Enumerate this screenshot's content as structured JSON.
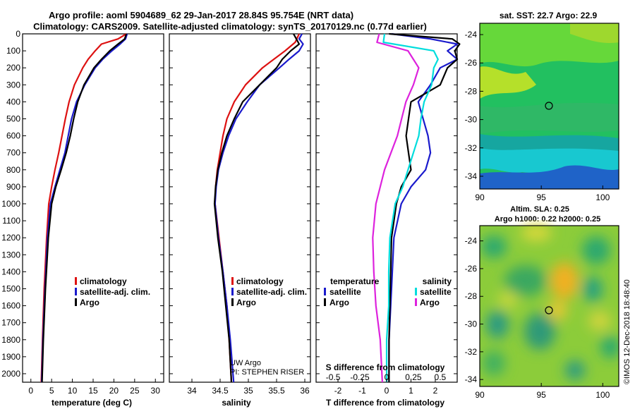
{
  "title_line1": "Argo profile: aoml 5904689_62 29-Jan-2017 28.84S 95.754E (NRT data)",
  "title_line2": "Climatology: CARS2009. Satellite-adjusted climatology: synTS_20170129.nc (0.77d earlier)",
  "colors": {
    "climatology": "#dd1111",
    "satellite": "#1a1acc",
    "argo": "#000000",
    "salinity_clim": "#dd22dd",
    "salinity_sat": "#00dddd"
  },
  "chart_data": [
    {
      "type": "line",
      "id": "temperature",
      "xlabel": "temperature (deg C)",
      "xlim": [
        -2,
        32
      ],
      "ylim": [
        0,
        2050
      ],
      "xticks": [
        "0",
        "5",
        "10",
        "15",
        "20",
        "25",
        "30"
      ],
      "yticks": [
        "0",
        "100",
        "200",
        "300",
        "400",
        "500",
        "600",
        "700",
        "800",
        "900",
        "1000",
        "1100",
        "1200",
        "1300",
        "1400",
        "1500",
        "1600",
        "1700",
        "1800",
        "1900",
        "2000"
      ],
      "legend": [
        "climatology",
        "satellite-adj. clim.",
        "Argo"
      ],
      "series": [
        {
          "name": "climatology",
          "depth": [
            0,
            30,
            60,
            100,
            150,
            200,
            300,
            400,
            500,
            600,
            700,
            800,
            900,
            1000,
            1200,
            1500,
            1800,
            2050
          ],
          "values": [
            23,
            21,
            17,
            15.5,
            13.8,
            12.5,
            10.5,
            9.2,
            8.3,
            7.5,
            6.7,
            5.8,
            5,
            4.3,
            3.8,
            3.2,
            2.8,
            2.5
          ]
        },
        {
          "name": "satellite-adj. clim.",
          "depth": [
            0,
            30,
            60,
            100,
            150,
            200,
            300,
            400,
            500,
            600,
            700,
            800,
            900,
            1000,
            1200,
            1500,
            1800,
            2050
          ],
          "values": [
            23.2,
            22.8,
            21.5,
            19.5,
            17.3,
            15.5,
            13,
            11,
            9.8,
            9,
            8.2,
            7,
            5.8,
            4.7,
            4,
            3.4,
            2.9,
            2.6
          ]
        },
        {
          "name": "Argo",
          "depth": [
            0,
            30,
            60,
            100,
            150,
            200,
            300,
            400,
            500,
            600,
            700,
            800,
            900,
            1000,
            1200,
            1500,
            1800,
            2050
          ],
          "values": [
            23,
            22.6,
            21,
            19,
            17,
            15.2,
            12.8,
            11.3,
            10.3,
            9.5,
            8.5,
            7.3,
            6,
            5,
            4.2,
            3.5,
            3,
            2.7
          ]
        }
      ]
    },
    {
      "type": "line",
      "id": "salinity",
      "xlabel": "salinity",
      "xlim": [
        33.6,
        36.1
      ],
      "ylim": [
        0,
        2050
      ],
      "xticks": [
        "34",
        "34.5",
        "35",
        "35.5",
        "36"
      ],
      "legend": [
        "climatology",
        "satellite-adj. clim.",
        "Argo"
      ],
      "credits": [
        "UW Argo",
        "PI: STEPHEN RISER"
      ],
      "series": [
        {
          "name": "climatology",
          "depth": [
            0,
            50,
            100,
            150,
            200,
            300,
            400,
            500,
            600,
            700,
            800,
            900,
            1000,
            1200,
            1400,
            1600,
            1800,
            2050
          ],
          "values": [
            35.9,
            35.83,
            35.65,
            35.45,
            35.25,
            34.95,
            34.75,
            34.62,
            34.55,
            34.5,
            34.45,
            34.42,
            34.41,
            34.48,
            34.55,
            34.62,
            34.66,
            34.7
          ]
        },
        {
          "name": "satellite-adj. clim.",
          "depth": [
            0,
            30,
            60,
            100,
            150,
            200,
            300,
            400,
            500,
            600,
            700,
            800,
            900,
            1000,
            1200,
            1400,
            1600,
            1800,
            2050
          ],
          "values": [
            35.95,
            35.9,
            35.97,
            35.9,
            35.72,
            35.55,
            35.2,
            34.98,
            34.78,
            34.65,
            34.55,
            34.47,
            34.43,
            34.41,
            34.47,
            34.55,
            34.62,
            34.68,
            34.74
          ]
        },
        {
          "name": "Argo",
          "depth": [
            0,
            30,
            60,
            100,
            150,
            200,
            300,
            400,
            500,
            600,
            700,
            800,
            900,
            1000,
            1200,
            1400,
            1600,
            1800,
            2050
          ],
          "values": [
            35.8,
            35.85,
            35.9,
            35.75,
            35.6,
            35.5,
            35.2,
            34.9,
            34.75,
            34.62,
            34.53,
            34.46,
            34.42,
            34.4,
            34.46,
            34.54,
            34.6,
            34.66,
            34.7
          ]
        }
      ]
    },
    {
      "type": "line",
      "id": "difference",
      "xlabel": "T difference from climatology",
      "xlabel_top": "S difference from climatology",
      "xlim": [
        -2.9,
        2.9
      ],
      "ylim": [
        0,
        2050
      ],
      "xticks": [
        "-2",
        "-1",
        "0",
        "1",
        "2"
      ],
      "xticks_s": [
        "-0.5",
        "-0.25",
        "0",
        "0.25",
        "0.5"
      ],
      "legend_titles": [
        "temperature",
        "salinity"
      ],
      "legend": [
        "satellite",
        "Argo",
        "satellite",
        "Argo"
      ],
      "series": [
        {
          "name": "temperature satellite",
          "depth": [
            0,
            30,
            60,
            100,
            150,
            200,
            300,
            400,
            500,
            600,
            700,
            800,
            900,
            1000,
            1200,
            1500,
            1800,
            2050
          ],
          "values": [
            0.2,
            1.8,
            2.9,
            2.5,
            2.9,
            2.2,
            1.8,
            1.3,
            1.5,
            1.7,
            1.8,
            1.6,
            1,
            0.6,
            0.3,
            0.2,
            0.1,
            0.1
          ]
        },
        {
          "name": "temperature Argo",
          "depth": [
            0,
            30,
            60,
            100,
            150,
            200,
            300,
            400,
            500,
            600,
            700,
            800,
            900,
            1000,
            1200,
            1500,
            1800,
            2050
          ],
          "values": [
            0.1,
            2.7,
            3,
            2.8,
            2.9,
            2.5,
            2.2,
            1,
            0.9,
            0.8,
            0.9,
            1,
            0.6,
            0.4,
            0.2,
            0.15,
            0.1,
            0.1
          ]
        },
        {
          "name": "salinity satellite",
          "depth": [
            0,
            50,
            100,
            150,
            200,
            300,
            400,
            500,
            600,
            700,
            800,
            900,
            1000,
            1200,
            1400,
            1600,
            1800,
            2050
          ],
          "values": [
            -0.02,
            -0.03,
            0.44,
            0.48,
            0.44,
            0.42,
            0.35,
            0.32,
            0.3,
            0.25,
            0.2,
            0.15,
            0.08,
            0.03,
            0.02,
            0.02,
            0.0,
            0.0
          ]
        },
        {
          "name": "salinity Argo",
          "depth": [
            0,
            50,
            100,
            150,
            200,
            300,
            400,
            500,
            600,
            700,
            800,
            900,
            1000,
            1200,
            1400,
            1600,
            1800,
            2050
          ],
          "values": [
            -0.07,
            -0.09,
            0.2,
            0.25,
            0.3,
            0.25,
            0.18,
            0.14,
            0.1,
            0.04,
            -0.02,
            -0.06,
            -0.1,
            -0.13,
            -0.12,
            -0.1,
            -0.06,
            -0.04
          ]
        }
      ]
    }
  ],
  "maps": [
    {
      "title": "sat. SST: 22.7 Argo: 22.9",
      "lat_ticks": [
        "-24",
        "-26",
        "-28",
        "-30",
        "-32",
        "-34"
      ],
      "lon_ticks": [
        "90",
        "95",
        "100"
      ]
    },
    {
      "title_line1": "Altim. SLA: 0.25",
      "title_line2": "Argo h1000: 0.22 h2000: 0.25",
      "lat_ticks": [
        "-24",
        "-26",
        "-28",
        "-30",
        "-32",
        "-34"
      ],
      "lon_ticks": [
        "90",
        "95",
        "100"
      ]
    }
  ],
  "profile_marker": {
    "lon": 95.754,
    "lat": -28.84
  },
  "imos_stamp": "©IMOS 12-Dec-2018 18:48:40"
}
